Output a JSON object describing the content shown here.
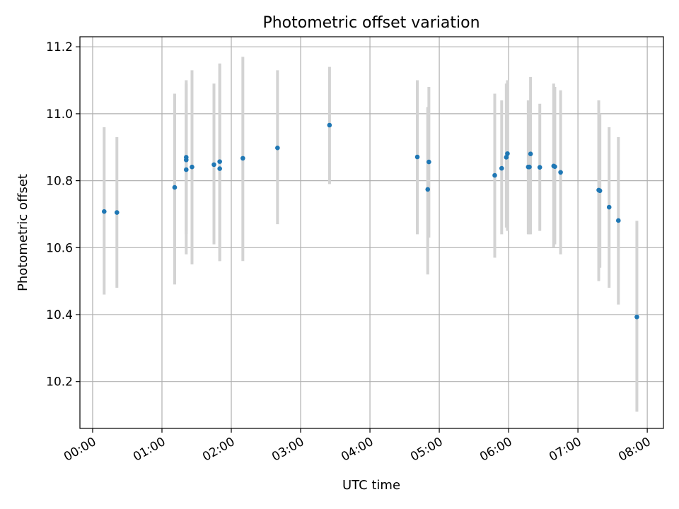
{
  "chart_data": {
    "type": "scatter",
    "title": "Photometric offset variation",
    "xlabel": "UTC time",
    "ylabel": "Photometric offset",
    "xlim": [
      "23:49",
      "08:14"
    ],
    "ylim": [
      10.06,
      11.23
    ],
    "grid": true,
    "x_ticks": [
      "00:00",
      "01:00",
      "02:00",
      "03:00",
      "04:00",
      "05:00",
      "06:00",
      "07:00",
      "08:00"
    ],
    "y_ticks": [
      10.2,
      10.4,
      10.6,
      10.8,
      11.0,
      11.2
    ],
    "y_tick_labels": [
      "10.2",
      "10.4",
      "10.6",
      "10.8",
      "11.0",
      "11.2"
    ],
    "colors": {
      "points": "#1f77b4",
      "error_bars": "#d3d3d3"
    },
    "series": [
      {
        "x": [
          "00:10",
          "00:21",
          "01:11",
          "01:21",
          "01:21",
          "01:21",
          "01:26",
          "01:45",
          "01:50",
          "01:50",
          "02:10",
          "02:40",
          "03:25",
          "04:41",
          "04:50",
          "04:51",
          "05:48",
          "05:54",
          "05:58",
          "05:59",
          "06:17",
          "06:18",
          "06:19",
          "06:27",
          "06:39",
          "06:40",
          "06:45",
          "07:18",
          "07:19",
          "07:27",
          "07:35",
          "07:51"
        ],
        "y": [
          10.708,
          10.705,
          10.78,
          10.87,
          10.862,
          10.833,
          10.841,
          10.848,
          10.836,
          10.857,
          10.867,
          10.898,
          10.966,
          10.871,
          10.774,
          10.856,
          10.816,
          10.837,
          10.87,
          10.881,
          10.841,
          10.841,
          10.88,
          10.84,
          10.844,
          10.842,
          10.825,
          10.772,
          10.77,
          10.721,
          10.681,
          10.393
        ],
        "y_low": [
          10.46,
          10.48,
          10.49,
          10.64,
          10.58,
          10.65,
          10.55,
          10.61,
          10.56,
          10.56,
          10.56,
          10.67,
          10.79,
          10.64,
          10.52,
          10.63,
          10.57,
          10.64,
          10.66,
          10.65,
          10.64,
          10.64,
          10.64,
          10.65,
          10.6,
          10.61,
          10.58,
          10.5,
          10.54,
          10.48,
          10.43,
          10.11
        ],
        "y_high": [
          10.96,
          10.93,
          11.06,
          11.1,
          11.09,
          11.03,
          11.13,
          11.09,
          11.15,
          11.15,
          11.17,
          11.13,
          11.14,
          11.1,
          11.02,
          11.08,
          11.06,
          11.04,
          11.09,
          11.1,
          11.04,
          11.04,
          11.11,
          11.03,
          11.09,
          11.08,
          11.07,
          11.04,
          11.0,
          10.96,
          10.93,
          10.68
        ]
      }
    ]
  }
}
